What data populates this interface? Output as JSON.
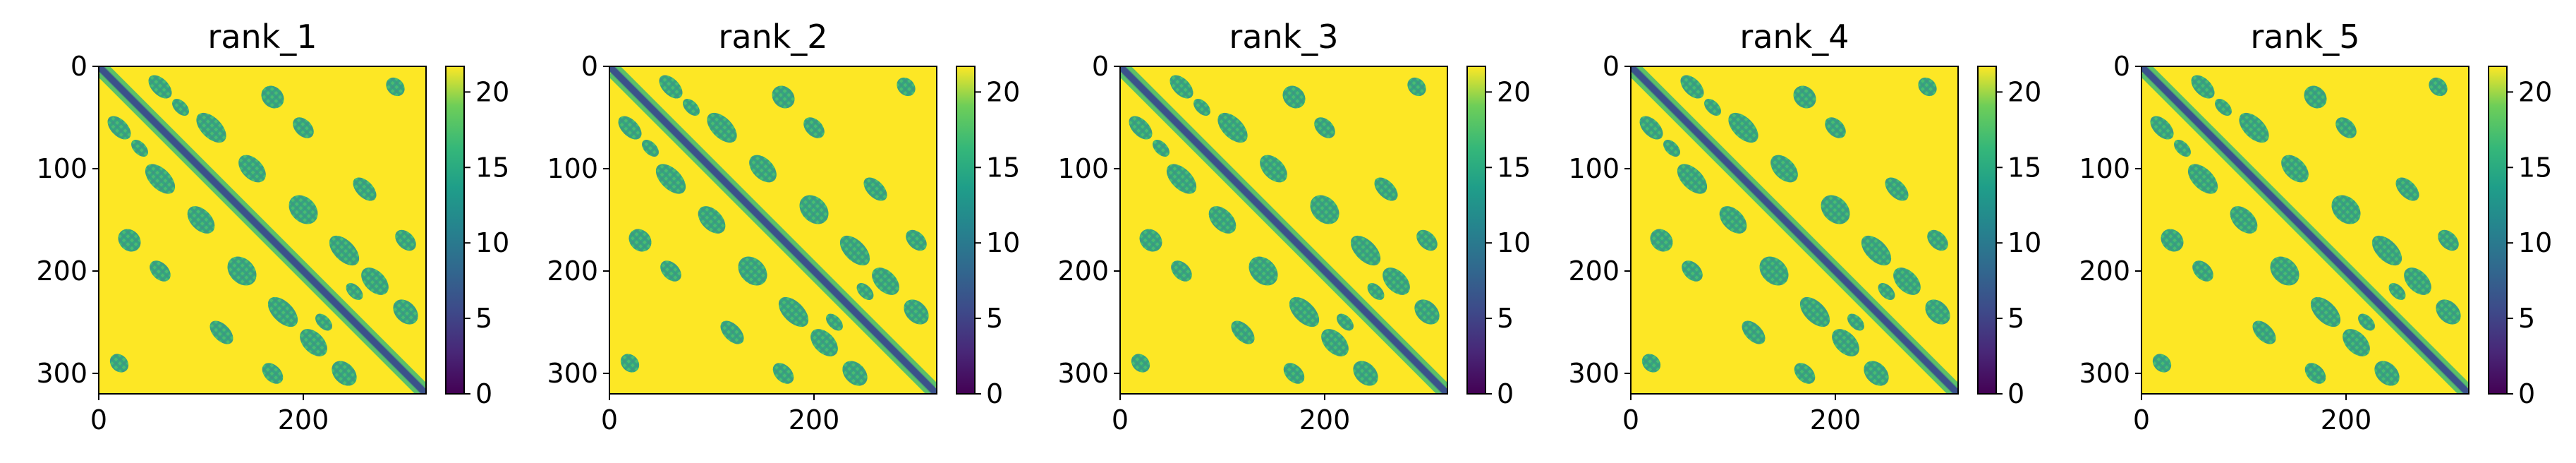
{
  "chart_data": [
    {
      "type": "heatmap",
      "title": "rank_1",
      "x_ticks": [
        0,
        200
      ],
      "y_ticks": [
        0,
        100,
        200,
        300
      ],
      "xlim": [
        0,
        320
      ],
      "ylim": [
        320,
        0
      ],
      "colorbar": {
        "ticks": [
          0,
          5,
          10,
          15,
          20
        ],
        "range": [
          0,
          21.7
        ]
      },
      "colormap": "viridis"
    },
    {
      "type": "heatmap",
      "title": "rank_2",
      "x_ticks": [
        0,
        200
      ],
      "y_ticks": [
        0,
        100,
        200,
        300
      ],
      "xlim": [
        0,
        320
      ],
      "ylim": [
        320,
        0
      ],
      "colorbar": {
        "ticks": [
          0,
          5,
          10,
          15,
          20
        ],
        "range": [
          0,
          21.7
        ]
      },
      "colormap": "viridis"
    },
    {
      "type": "heatmap",
      "title": "rank_3",
      "x_ticks": [
        0,
        200
      ],
      "y_ticks": [
        0,
        100,
        200,
        300
      ],
      "xlim": [
        0,
        320
      ],
      "ylim": [
        320,
        0
      ],
      "colorbar": {
        "ticks": [
          0,
          5,
          10,
          15,
          20
        ],
        "range": [
          0,
          21.7
        ]
      },
      "colormap": "viridis"
    },
    {
      "type": "heatmap",
      "title": "rank_4",
      "x_ticks": [
        0,
        200
      ],
      "y_ticks": [
        0,
        100,
        200,
        300
      ],
      "xlim": [
        0,
        320
      ],
      "ylim": [
        320,
        0
      ],
      "colorbar": {
        "ticks": [
          0,
          5,
          10,
          15,
          20
        ],
        "range": [
          0,
          21.7
        ]
      },
      "colormap": "viridis"
    },
    {
      "type": "heatmap",
      "title": "rank_5",
      "x_ticks": [
        0,
        200
      ],
      "y_ticks": [
        0,
        100,
        200,
        300
      ],
      "xlim": [
        0,
        320
      ],
      "ylim": [
        320,
        0
      ],
      "colorbar": {
        "ticks": [
          0,
          5,
          10,
          15,
          20
        ],
        "range": [
          0,
          21.7
        ]
      },
      "colormap": "viridis"
    }
  ]
}
